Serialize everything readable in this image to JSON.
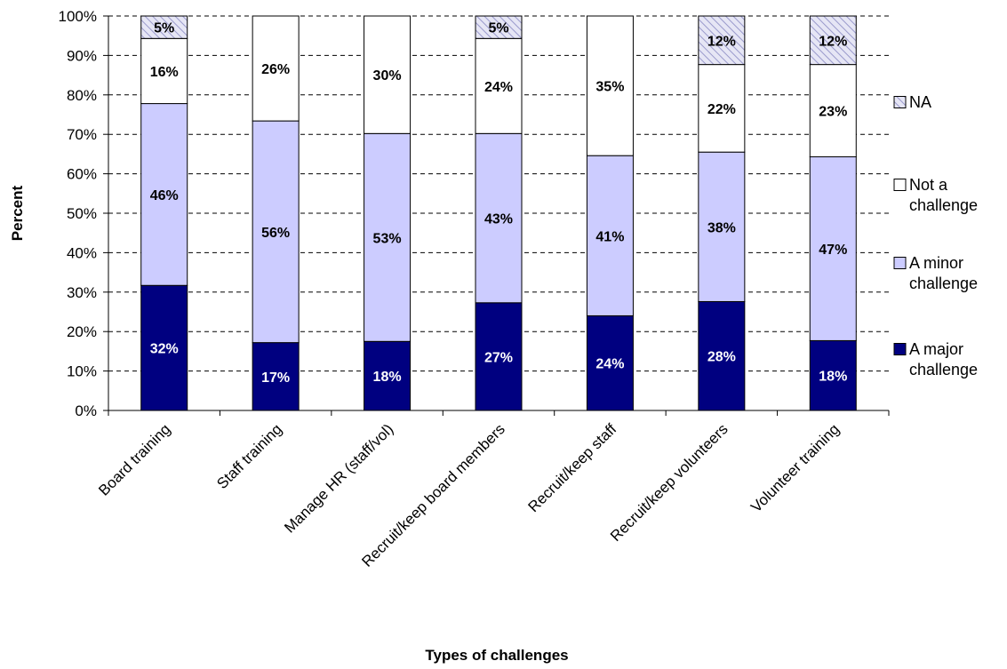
{
  "chart_data": {
    "type": "bar",
    "stacked": true,
    "percent_stacked": true,
    "categories": [
      "Board training",
      "Staff training",
      "Manage HR (staff/vol)",
      "Recruit/keep board members",
      "Recruit/keep staff",
      "Recruit/keep volunteers",
      "Volunteer training"
    ],
    "series": [
      {
        "name": "A major challenge",
        "values": [
          32,
          17,
          18,
          27,
          24,
          28,
          18
        ],
        "color": "#000080",
        "label_color": "#ffffff"
      },
      {
        "name": "A minor challenge",
        "values": [
          46,
          56,
          53,
          43,
          41,
          38,
          47
        ],
        "color": "#ccccff",
        "label_color": "#000000"
      },
      {
        "name": "Not a challenge",
        "values": [
          16,
          26,
          30,
          24,
          35,
          22,
          23
        ],
        "color": "#ffffff",
        "label_color": "#000000"
      },
      {
        "name": "NA",
        "values": [
          5,
          0,
          0,
          5,
          0,
          12,
          12
        ],
        "color": "#e6e6f5",
        "label_color": "#000000",
        "pattern": "hatch"
      }
    ],
    "stack_tops": {
      "A major challenge": [
        31.7,
        17.2,
        17.5,
        27.3,
        24.0,
        27.6,
        17.7
      ],
      "A minor challenge": [
        77.8,
        73.4,
        70.2,
        70.2,
        64.6,
        65.5,
        64.3
      ],
      "Not a challenge": [
        94.3,
        100,
        100,
        94.3,
        100,
        87.7,
        87.7
      ],
      "NA": [
        100,
        100,
        100,
        100,
        100,
        100,
        100
      ]
    },
    "y_ticks": [
      "0%",
      "10%",
      "20%",
      "30%",
      "40%",
      "50%",
      "60%",
      "70%",
      "80%",
      "90%",
      "100%"
    ],
    "ylim": [
      0,
      100
    ],
    "xlabel": "Types of challenges",
    "ylabel": "Percent",
    "grid": "horizontal-dashed",
    "legend_position": "right",
    "legend_order": [
      "NA",
      "Not a challenge",
      "A minor challenge",
      "A major challenge"
    ],
    "legend_labels": {
      "NA": [
        "NA"
      ],
      "Not a challenge": [
        "Not a",
        "challenge"
      ],
      "A minor challenge": [
        "A minor",
        "challenge"
      ],
      "A major challenge": [
        "A major",
        "challenge"
      ]
    }
  }
}
